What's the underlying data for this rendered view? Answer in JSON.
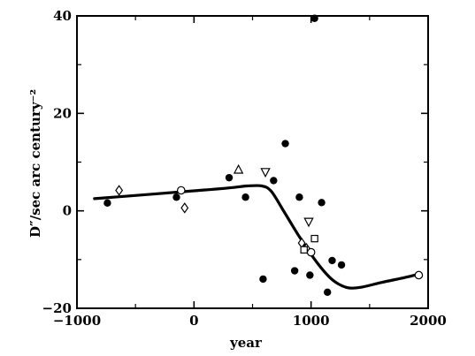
{
  "chart_data": {
    "type": "scatter",
    "xlabel": "year",
    "ylabel": "D″/sec arc century⁻²",
    "xlim": [
      -1000,
      2000
    ],
    "ylim": [
      -20,
      40
    ],
    "xticks": [
      -1000,
      0,
      1000,
      2000
    ],
    "xtick_labels": [
      "−1000",
      "0",
      "1000",
      "2000"
    ],
    "yticks": [
      -20,
      0,
      20,
      40
    ],
    "ytick_labels": [
      "−20",
      "0",
      "20",
      "40"
    ],
    "grid": false,
    "series": [
      {
        "marker": "filled-circle",
        "points": [
          [
            -740,
            1.6
          ],
          [
            -150,
            2.8
          ],
          [
            300,
            6.8
          ],
          [
            440,
            2.8
          ],
          [
            680,
            6.2
          ],
          [
            780,
            13.8
          ],
          [
            860,
            -12.3
          ],
          [
            900,
            2.8
          ],
          [
            990,
            -13.2
          ],
          [
            1030,
            39.5
          ],
          [
            1090,
            1.7
          ],
          [
            1140,
            -16.7
          ],
          [
            1180,
            -10.2
          ],
          [
            1260,
            -11.1
          ],
          [
            590,
            -14.0
          ]
        ]
      },
      {
        "marker": "open-circle",
        "points": [
          [
            -110,
            4.2
          ],
          [
            1000,
            -8.5
          ],
          [
            1920,
            -13.2
          ]
        ]
      },
      {
        "marker": "open-diamond",
        "points": [
          [
            -640,
            4.2
          ],
          [
            -80,
            0.6
          ],
          [
            920,
            -6.6
          ],
          [
            960,
            -7.7
          ]
        ]
      },
      {
        "marker": "open-triangle-up",
        "points": [
          [
            380,
            8.4
          ]
        ]
      },
      {
        "marker": "open-triangle-down",
        "points": [
          [
            610,
            8.0
          ],
          [
            980,
            -2.2
          ]
        ]
      },
      {
        "marker": "open-square",
        "points": [
          [
            1030,
            -5.7
          ],
          [
            940,
            -8.0
          ]
        ]
      }
    ],
    "fit_curve": [
      [
        -850,
        2.5
      ],
      [
        0,
        4.1
      ],
      [
        300,
        4.7
      ],
      [
        450,
        5.1
      ],
      [
        580,
        5.1
      ],
      [
        660,
        4.0
      ],
      [
        760,
        0.2
      ],
      [
        900,
        -5.3
      ],
      [
        1050,
        -10.6
      ],
      [
        1180,
        -14.1
      ],
      [
        1300,
        -15.7
      ],
      [
        1420,
        -15.7
      ],
      [
        1600,
        -14.7
      ],
      [
        1800,
        -13.7
      ],
      [
        1920,
        -13.0
      ]
    ]
  }
}
